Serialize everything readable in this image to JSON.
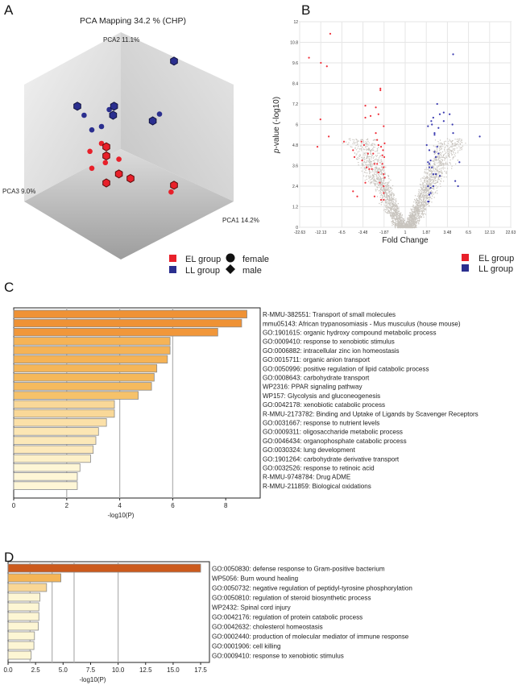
{
  "panels": {
    "a": "A",
    "b": "B",
    "c": "C",
    "d": "D"
  },
  "chart_data": [
    {
      "type": "scatter",
      "title": "PCA Mapping 34.2 % (CHP)",
      "axes": {
        "pc1": "PCA1 14.2%",
        "pc2": "PCA2 11.1%",
        "pc3": "PCA3 9.0%"
      },
      "legend": {
        "groups": [
          {
            "name": "EL group",
            "color": "#e8202a"
          },
          {
            "name": "LL group",
            "color": "#2b2f8f"
          }
        ],
        "sexes": [
          "female",
          "male"
        ]
      },
      "points": [
        {
          "group": "LL",
          "sex": "male",
          "pc": [
            0.55,
            0.78,
            0.5
          ]
        },
        {
          "group": "LL",
          "sex": "male",
          "pc": [
            -0.45,
            0.38,
            0.1
          ]
        },
        {
          "group": "LL",
          "sex": "female",
          "pc": [
            -0.38,
            0.3,
            0.1
          ]
        },
        {
          "group": "LL",
          "sex": "female",
          "pc": [
            -0.12,
            0.35,
            0.1
          ]
        },
        {
          "group": "LL",
          "sex": "male",
          "pc": [
            -0.07,
            0.38,
            0.1
          ]
        },
        {
          "group": "LL",
          "sex": "male",
          "pc": [
            -0.08,
            0.3,
            0.1
          ]
        },
        {
          "group": "LL",
          "sex": "female",
          "pc": [
            -0.3,
            0.17,
            0.1
          ]
        },
        {
          "group": "LL",
          "sex": "female",
          "pc": [
            -0.2,
            0.2,
            0.1
          ]
        },
        {
          "group": "LL",
          "sex": "male",
          "pc": [
            0.33,
            0.25,
            0.1
          ]
        },
        {
          "group": "LL",
          "sex": "female",
          "pc": [
            0.4,
            0.31,
            0.1
          ]
        },
        {
          "group": "EL",
          "sex": "female",
          "pc": [
            -0.2,
            0.05,
            0.1
          ]
        },
        {
          "group": "EL",
          "sex": "male",
          "pc": [
            -0.15,
            0.02,
            0.1
          ]
        },
        {
          "group": "EL",
          "sex": "female",
          "pc": [
            -0.32,
            -0.02,
            0.1
          ]
        },
        {
          "group": "EL",
          "sex": "male",
          "pc": [
            -0.15,
            -0.06,
            0.1
          ]
        },
        {
          "group": "EL",
          "sex": "female",
          "pc": [
            -0.16,
            -0.12,
            0.1
          ]
        },
        {
          "group": "EL",
          "sex": "female",
          "pc": [
            -0.02,
            -0.09,
            0.1
          ]
        },
        {
          "group": "EL",
          "sex": "male",
          "pc": [
            -0.02,
            -0.22,
            0.1
          ]
        },
        {
          "group": "EL",
          "sex": "male",
          "pc": [
            0.1,
            -0.26,
            0.1
          ]
        },
        {
          "group": "EL",
          "sex": "male",
          "pc": [
            -0.15,
            -0.3,
            0.1
          ]
        },
        {
          "group": "EL",
          "sex": "female",
          "pc": [
            -0.3,
            -0.17,
            0.1
          ]
        },
        {
          "group": "EL",
          "sex": "male",
          "pc": [
            0.55,
            -0.32,
            0.1
          ]
        },
        {
          "group": "EL",
          "sex": "female",
          "pc": [
            0.52,
            -0.38,
            0.1
          ]
        }
      ]
    },
    {
      "type": "scatter",
      "title": "",
      "xlabel": "Fold Change",
      "ylabel": "p-value (-log10)",
      "ylabel_italic": "p",
      "ylabel_rest": "-value (-log10)",
      "xticks": [
        "-22.63",
        "-12.13",
        "-6.5",
        "-3.48",
        "-1.87",
        "1",
        "1.87",
        "3.48",
        "6.5",
        "12.13",
        "22.63"
      ],
      "yticks": [
        "0",
        "1.2",
        "2.4",
        "3.6",
        "4.8",
        "6",
        "7.2",
        "8.4",
        "9.6",
        "10.8",
        "12"
      ],
      "ylim": [
        0,
        12
      ],
      "grid": true,
      "legend": [
        {
          "name": "EL group",
          "color": "#e8202a"
        },
        {
          "name": "LL group",
          "color": "#2b2f8f"
        }
      ],
      "series": [
        {
          "name": "EL group",
          "color": "#f0303a",
          "points": [
            [
              -18,
              9.9
            ],
            [
              -12.1,
              9.6
            ],
            [
              -9.6,
              11.3
            ],
            [
              -10.5,
              9.4
            ],
            [
              -12.3,
              6.3
            ],
            [
              -10,
              5.3
            ],
            [
              -13.8,
              4.7
            ],
            [
              -6.2,
              5
            ],
            [
              -4.9,
              4.5
            ],
            [
              -4.7,
              4.1
            ],
            [
              -4.9,
              2.1
            ],
            [
              -4.3,
              1.8
            ],
            [
              -3.7,
              5
            ],
            [
              -3.4,
              4.8
            ],
            [
              -3.1,
              4.3
            ],
            [
              -3.6,
              3.9
            ],
            [
              -3.2,
              3.5
            ],
            [
              -3.3,
              6.4
            ],
            [
              -2.9,
              6.5
            ],
            [
              -2.5,
              7
            ],
            [
              -3.3,
              7.1
            ],
            [
              -2.3,
              6.6
            ],
            [
              -2.5,
              5.5
            ],
            [
              -2.4,
              5.1
            ],
            [
              -2.1,
              4.7
            ],
            [
              -2,
              3.7
            ],
            [
              -2.6,
              3.7
            ],
            [
              -2.8,
              3.4
            ],
            [
              -3.3,
              2.6
            ],
            [
              -2.2,
              2.6
            ],
            [
              -2.6,
              1.8
            ],
            [
              -2.1,
              1.6
            ],
            [
              -1.9,
              1.6
            ],
            [
              -1.9,
              2
            ],
            [
              -1.9,
              2.4
            ],
            [
              -1.8,
              2.9
            ],
            [
              -1.9,
              3.1
            ],
            [
              -1.9,
              3.5
            ],
            [
              -2.0,
              4.2
            ],
            [
              -1.8,
              4.9
            ],
            [
              -1.9,
              5.9
            ],
            [
              -2.15,
              8.1
            ],
            [
              -2.15,
              8
            ],
            [
              -2.3,
              3.2
            ],
            [
              -2.4,
              3.7
            ],
            [
              -1.85,
              4.1
            ],
            [
              -1.95,
              4.5
            ],
            [
              -2.3,
              4.8
            ],
            [
              -2.7,
              4.3
            ],
            [
              -3.0,
              3.4
            ]
          ]
        },
        {
          "name": "LL group",
          "color": "#3a3ab0",
          "points": [
            [
              4.3,
              10.1
            ],
            [
              9.5,
              5.3
            ],
            [
              5.2,
              3.8
            ],
            [
              4.6,
              2.7
            ],
            [
              5.0,
              2.4
            ],
            [
              2.7,
              7.2
            ],
            [
              3.2,
              6.7
            ],
            [
              3.8,
              6.6
            ],
            [
              2.9,
              6.6
            ],
            [
              2.4,
              6.4
            ],
            [
              2.25,
              6.2
            ],
            [
              3.2,
              6.2
            ],
            [
              4.2,
              6.0
            ],
            [
              2.3,
              6.0
            ],
            [
              2.0,
              5.9
            ],
            [
              2.8,
              5.8
            ],
            [
              2.5,
              5.5
            ],
            [
              4.3,
              5.5
            ],
            [
              2.5,
              5.4
            ],
            [
              2.1,
              4.5
            ],
            [
              1.9,
              4.8
            ],
            [
              2.7,
              4.7
            ],
            [
              2.5,
              4.4
            ],
            [
              2.8,
              4.3
            ],
            [
              2.6,
              4.1
            ],
            [
              2.2,
              3.9
            ],
            [
              2.0,
              3.8
            ],
            [
              2.1,
              3.7
            ],
            [
              2.1,
              3.5
            ],
            [
              2.3,
              3.5
            ],
            [
              2.4,
              3.1
            ],
            [
              2.6,
              3.1
            ],
            [
              2.9,
              3
            ],
            [
              2.0,
              2.4
            ],
            [
              2.2,
              2.3
            ],
            [
              2.2,
              2.0
            ],
            [
              2.1,
              1.9
            ],
            [
              2.0,
              1.5
            ],
            [
              2.05,
              1.5
            ],
            [
              2.4,
              2.4
            ]
          ]
        }
      ]
    },
    {
      "type": "bar",
      "orientation": "horizontal",
      "xlabel": "-log10(P)",
      "xticks": [
        "0",
        "2",
        "4",
        "6",
        "8"
      ],
      "xlim": [
        0,
        9.3
      ],
      "gridlines": [
        2,
        4,
        6
      ],
      "categories": [
        "R-MMU-382551: Transport of small molecules",
        "mmu05143: African trypanosomiasis - Mus musculus (house mouse)",
        "GO:1901615: organic hydroxy compound metabolic process",
        "GO:0009410: response to xenobiotic stimulus",
        "GO:0006882: intracellular zinc ion homeostasis",
        "GO:0015711: organic anion transport",
        "GO:0050996: positive regulation of lipid catabolic process",
        "GO:0008643: carbohydrate transport",
        "WP2316: PPAR signaling pathway",
        "WP157: Glycolysis and gluconeogenesis",
        "GO:0042178: xenobiotic catabolic process",
        "R-MMU-2173782: Binding and Uptake of Ligands by Scavenger Receptors",
        "GO:0031667: response to nutrient levels",
        "GO:0009311: oligosaccharide metabolic process",
        "GO:0046434: organophosphate catabolic process",
        "GO:0030324: lung development",
        "GO:1901264: carbohydrate derivative transport",
        "GO:0032526: response to retinoic acid",
        "R-MMU-9748784: Drug ADME",
        "R-MMU-211859: Biological oxidations"
      ],
      "values": [
        8.8,
        8.6,
        7.7,
        5.9,
        5.9,
        5.8,
        5.4,
        5.3,
        5.2,
        4.7,
        3.8,
        3.8,
        3.5,
        3.2,
        3.1,
        3.0,
        2.9,
        2.5,
        2.4,
        2.4
      ],
      "colors": [
        "#ef9235",
        "#ef9235",
        "#f1973a",
        "#f5b356",
        "#f5b356",
        "#f5b356",
        "#f5b658",
        "#f5b85a",
        "#f5ba5e",
        "#f6c26a",
        "#f9d898",
        "#f9d898",
        "#fbe0a8",
        "#fce6b4",
        "#fce8b8",
        "#fde9bb",
        "#fdf0c8",
        "#fef6d6",
        "#fef6d6",
        "#fef6d6"
      ]
    },
    {
      "type": "bar",
      "orientation": "horizontal",
      "xlabel": "-log10(P)",
      "xticks": [
        "0.0",
        "2.5",
        "5.0",
        "7.5",
        "10.0",
        "12.5",
        "15.0",
        "17.5"
      ],
      "xlim": [
        0,
        18.3
      ],
      "gridlines": [
        2,
        4,
        6,
        10
      ],
      "categories": [
        "GO:0050830: defense response to Gram-positive bacterium",
        "WP5056: Burn wound healing",
        "GO:0050732: negative regulation of peptidyl-tyrosine phosphorylation",
        "GO:0050810: regulation of steroid biosynthetic process",
        "WP2432: Spinal cord injury",
        "GO:0042176: regulation of protein catabolic process",
        "GO:0042632: cholesterol homeostasis",
        "GO:0002440: production of molecular mediator of immune response",
        "GO:0001906: cell killing",
        "GO:0009410: response to xenobiotic stimulus"
      ],
      "values": [
        17.5,
        4.8,
        3.5,
        2.9,
        2.8,
        2.8,
        2.75,
        2.4,
        2.35,
        2.1
      ],
      "colors": [
        "#cc5a1c",
        "#f5b556",
        "#f9d796",
        "#fdf6d4",
        "#fdf6d4",
        "#fdf6d4",
        "#fdf6d4",
        "#fdf6d4",
        "#fdf6d4",
        "#fdf6d4"
      ]
    }
  ]
}
